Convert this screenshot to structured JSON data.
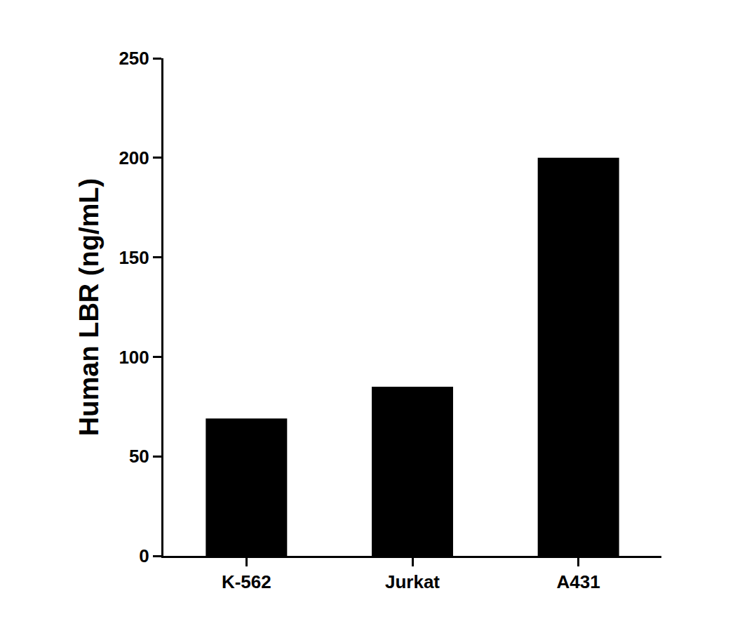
{
  "chart_data": {
    "type": "bar",
    "y_label": "Human LBR (ng/mL)",
    "categories": [
      "K-562",
      "Jurkat",
      "A431"
    ],
    "values": [
      69,
      85,
      200
    ],
    "color": "#000000",
    "ylim": [
      0,
      250
    ],
    "yticks": [
      0,
      50,
      100,
      150,
      200,
      250
    ],
    "grid": false
  }
}
